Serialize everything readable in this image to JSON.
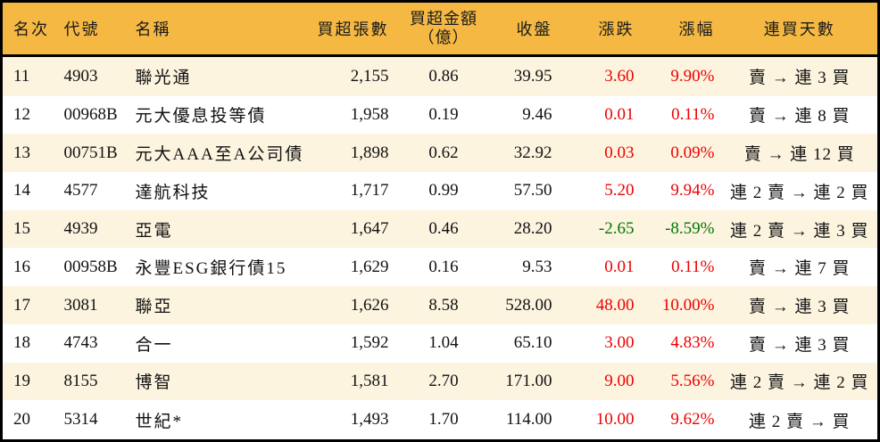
{
  "colors": {
    "header_bg": "#F5B843",
    "row_alt_bg": "#FDF4E0",
    "row_bg": "#FFFFFF",
    "border": "#000000",
    "up": "#EE0000",
    "down": "#007500",
    "text": "#111111"
  },
  "table": {
    "columns": [
      {
        "key": "rank",
        "label": "名次"
      },
      {
        "key": "code",
        "label": "代號"
      },
      {
        "key": "name",
        "label": "名稱"
      },
      {
        "key": "volume",
        "label": "買超張數"
      },
      {
        "key": "amount",
        "label": "買超金額",
        "label2": "（億）"
      },
      {
        "key": "close",
        "label": "收盤"
      },
      {
        "key": "change",
        "label": "漲跌"
      },
      {
        "key": "pct",
        "label": "漲幅"
      },
      {
        "key": "days",
        "label": "連買天數"
      }
    ],
    "rows": [
      {
        "rank": "11",
        "code": "4903",
        "name": "聯光通",
        "volume": "2,155",
        "amount": "0.86",
        "close": "39.95",
        "change": "3.60",
        "pct": "9.90%",
        "days": "賣 → 連 3 買",
        "trend": "up"
      },
      {
        "rank": "12",
        "code": "00968B",
        "name": "元大優息投等債",
        "volume": "1,958",
        "amount": "0.19",
        "close": "9.46",
        "change": "0.01",
        "pct": "0.11%",
        "days": "賣 → 連 8 買",
        "trend": "up"
      },
      {
        "rank": "13",
        "code": "00751B",
        "name": "元大AAA至A公司債",
        "volume": "1,898",
        "amount": "0.62",
        "close": "32.92",
        "change": "0.03",
        "pct": "0.09%",
        "days": "賣 → 連 12 買",
        "trend": "up"
      },
      {
        "rank": "14",
        "code": "4577",
        "name": "達航科技",
        "volume": "1,717",
        "amount": "0.99",
        "close": "57.50",
        "change": "5.20",
        "pct": "9.94%",
        "days": "連 2 賣 → 連 2 買",
        "trend": "up"
      },
      {
        "rank": "15",
        "code": "4939",
        "name": "亞電",
        "volume": "1,647",
        "amount": "0.46",
        "close": "28.20",
        "change": "-2.65",
        "pct": "-8.59%",
        "days": "連 2 賣 → 連 3 買",
        "trend": "down"
      },
      {
        "rank": "16",
        "code": "00958B",
        "name": "永豐ESG銀行債15",
        "volume": "1,629",
        "amount": "0.16",
        "close": "9.53",
        "change": "0.01",
        "pct": "0.11%",
        "days": "賣 → 連 7 買",
        "trend": "up"
      },
      {
        "rank": "17",
        "code": "3081",
        "name": "聯亞",
        "volume": "1,626",
        "amount": "8.58",
        "close": "528.00",
        "change": "48.00",
        "pct": "10.00%",
        "days": "賣 → 連 3 買",
        "trend": "up"
      },
      {
        "rank": "18",
        "code": "4743",
        "name": "合一",
        "volume": "1,592",
        "amount": "1.04",
        "close": "65.10",
        "change": "3.00",
        "pct": "4.83%",
        "days": "賣 → 連 3 買",
        "trend": "up"
      },
      {
        "rank": "19",
        "code": "8155",
        "name": "博智",
        "volume": "1,581",
        "amount": "2.70",
        "close": "171.00",
        "change": "9.00",
        "pct": "5.56%",
        "days": "連 2 賣 → 連 2 買",
        "trend": "up"
      },
      {
        "rank": "20",
        "code": "5314",
        "name": "世紀*",
        "volume": "1,493",
        "amount": "1.70",
        "close": "114.00",
        "change": "10.00",
        "pct": "9.62%",
        "days": "連 2 賣 → 買",
        "trend": "up"
      }
    ]
  }
}
